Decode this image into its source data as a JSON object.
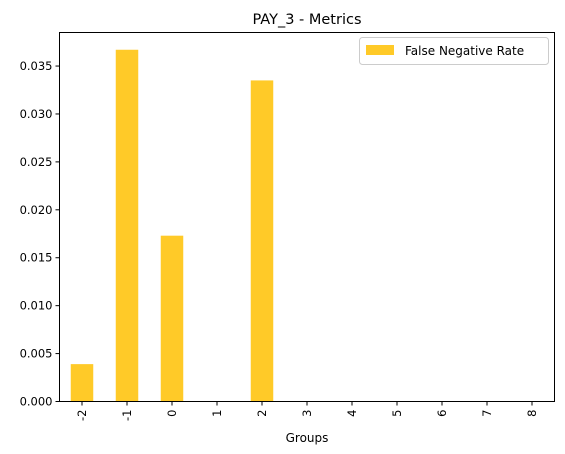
{
  "chart_data": {
    "type": "bar",
    "title": "PAY_3 - Metrics",
    "xlabel": "Groups",
    "ylabel": "",
    "categories": [
      "-2",
      "-1",
      "0",
      "1",
      "2",
      "3",
      "4",
      "5",
      "6",
      "7",
      "8"
    ],
    "series": [
      {
        "name": "False Negative Rate",
        "values": [
          0.0039,
          0.0367,
          0.0173,
          0,
          0.0335,
          0,
          0,
          0,
          0,
          0,
          0
        ],
        "color": "#FFCA28"
      }
    ],
    "yticks": [
      0.0,
      0.005,
      0.01,
      0.015,
      0.02,
      0.025,
      0.03,
      0.035
    ],
    "ytick_labels": [
      "0.000",
      "0.005",
      "0.010",
      "0.015",
      "0.020",
      "0.025",
      "0.030",
      "0.035"
    ],
    "ylim": [
      0,
      0.0385
    ],
    "grid": false,
    "legend_position": "top-right",
    "x_tick_rotation": "vertical"
  }
}
